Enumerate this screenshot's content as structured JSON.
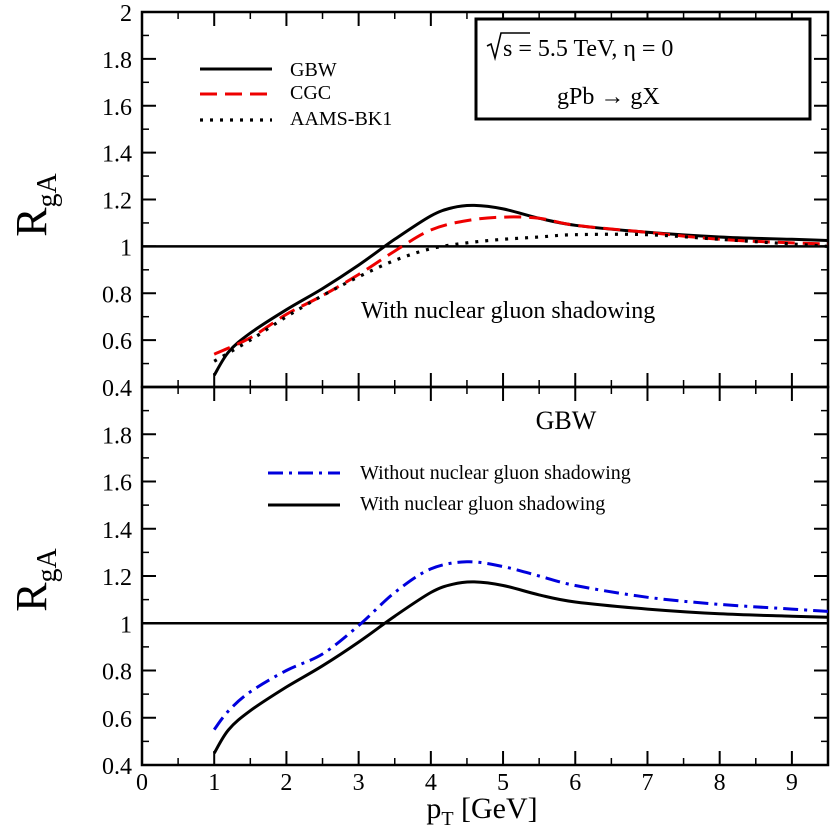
{
  "chart_data": [
    {
      "type": "line",
      "panel": "top",
      "ylabel": "R",
      "ylabel_sub": "gA",
      "xlim": [
        0,
        9.5
      ],
      "ylim": [
        0.4,
        2
      ],
      "yticks": [
        "0.4",
        "0.6",
        "0.8",
        "1",
        "1.2",
        "1.4",
        "1.6",
        "1.8",
        "2"
      ],
      "reference_line_y": 1,
      "infobox": {
        "sqrt_s": "s",
        "energy": " = 5.5 TeV, η = 0",
        "process": "gPb → gX"
      },
      "annotation": "With nuclear gluon shadowing",
      "legend_position": "top-left",
      "series": [
        {
          "name": "GBW",
          "style": "solid",
          "color": "#000000",
          "x": [
            1.0,
            1.2,
            1.5,
            2.0,
            2.5,
            3.0,
            3.5,
            4.0,
            4.3,
            4.6,
            5.0,
            5.5,
            6.0,
            7.0,
            8.0,
            9.0,
            9.5
          ],
          "y": [
            0.45,
            0.55,
            0.63,
            0.73,
            0.82,
            0.92,
            1.03,
            1.13,
            1.165,
            1.175,
            1.16,
            1.12,
            1.09,
            1.06,
            1.04,
            1.03,
            1.025
          ]
        },
        {
          "name": "CGC",
          "style": "dashed",
          "color": "#ee0000",
          "x": [
            1.0,
            1.5,
            2.0,
            2.5,
            3.0,
            3.5,
            4.0,
            4.5,
            5.0,
            5.5,
            6.0,
            7.0,
            8.0,
            9.0,
            9.5
          ],
          "y": [
            0.54,
            0.61,
            0.71,
            0.79,
            0.88,
            0.98,
            1.07,
            1.11,
            1.125,
            1.12,
            1.09,
            1.06,
            1.03,
            1.015,
            1.01
          ]
        },
        {
          "name": "AAMS-BK1",
          "style": "dotted",
          "color": "#000000",
          "x": [
            1.0,
            1.5,
            2.0,
            2.5,
            3.0,
            3.5,
            4.0,
            4.5,
            5.0,
            5.5,
            6.0,
            7.0,
            8.0,
            9.0,
            9.5
          ],
          "y": [
            0.51,
            0.6,
            0.7,
            0.79,
            0.87,
            0.94,
            0.99,
            1.015,
            1.03,
            1.04,
            1.05,
            1.05,
            1.03,
            1.01,
            1.0
          ]
        }
      ]
    },
    {
      "type": "line",
      "panel": "bottom",
      "title": "GBW",
      "xlabel": "p",
      "xlabel_sub": "T",
      "xlabel_unit": " [GeV]",
      "ylabel": "R",
      "ylabel_sub": "gA",
      "xlim": [
        0,
        9.5
      ],
      "ylim": [
        0.4,
        2
      ],
      "xticks": [
        "0",
        "1",
        "2",
        "3",
        "4",
        "5",
        "6",
        "7",
        "8",
        "9"
      ],
      "yticks": [
        "0.4",
        "0.6",
        "0.8",
        "1",
        "1.2",
        "1.4",
        "1.6",
        "1.8"
      ],
      "reference_line_y": 1,
      "legend_position": "top-right",
      "series": [
        {
          "name": "Without nuclear gluon shadowing",
          "style": "dashdot",
          "color": "#0000dd",
          "x": [
            1.0,
            1.2,
            1.5,
            2.0,
            2.5,
            3.0,
            3.5,
            4.0,
            4.5,
            5.0,
            5.5,
            6.0,
            7.0,
            8.0,
            9.0,
            9.5
          ],
          "y": [
            0.55,
            0.63,
            0.71,
            0.8,
            0.87,
            0.99,
            1.13,
            1.23,
            1.26,
            1.24,
            1.2,
            1.16,
            1.11,
            1.08,
            1.06,
            1.05
          ]
        },
        {
          "name": "With nuclear gluon shadowing",
          "style": "solid",
          "color": "#000000",
          "x": [
            1.0,
            1.2,
            1.5,
            2.0,
            2.5,
            3.0,
            3.5,
            4.0,
            4.3,
            4.6,
            5.0,
            5.5,
            6.0,
            7.0,
            8.0,
            9.0,
            9.5
          ],
          "y": [
            0.45,
            0.55,
            0.63,
            0.73,
            0.82,
            0.92,
            1.03,
            1.13,
            1.165,
            1.175,
            1.16,
            1.12,
            1.09,
            1.06,
            1.04,
            1.03,
            1.025
          ]
        }
      ]
    }
  ]
}
